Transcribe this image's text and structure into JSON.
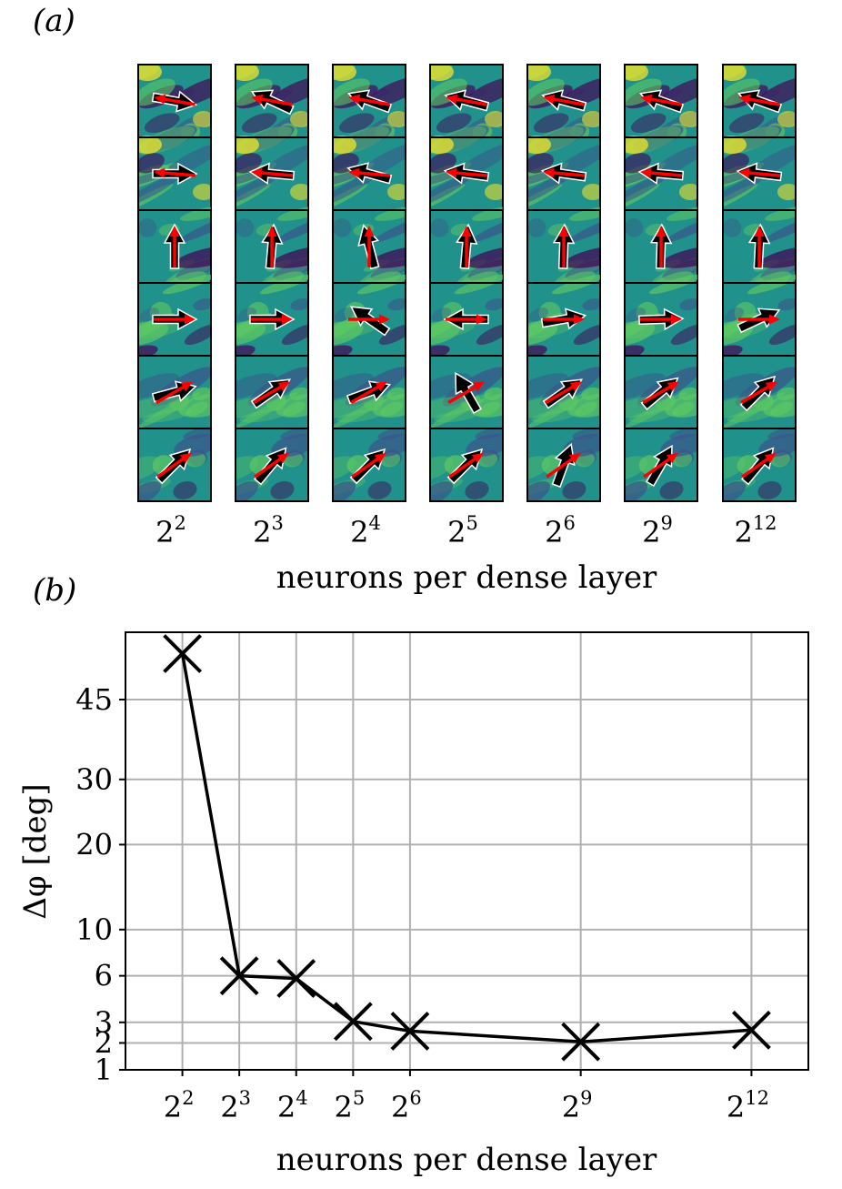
{
  "figure": {
    "panel_a_label": "(a)",
    "panel_b_label": "(b)"
  },
  "panel_a": {
    "columns": [
      {
        "base": "2",
        "exp": "2"
      },
      {
        "base": "2",
        "exp": "3"
      },
      {
        "base": "2",
        "exp": "4"
      },
      {
        "base": "2",
        "exp": "5"
      },
      {
        "base": "2",
        "exp": "6"
      },
      {
        "base": "2",
        "exp": "9"
      },
      {
        "base": "2",
        "exp": "12"
      }
    ],
    "xlabel": "neurons per dense layer",
    "rows": 6,
    "colormap": [
      "#440154",
      "#3b528b",
      "#21918c",
      "#5ec962",
      "#fde725"
    ],
    "arrow_colors": {
      "prediction": "#000000",
      "prediction_outline": "#ffffff",
      "truth": "#ff0000"
    },
    "truth_angles_deg": [
      170,
      175,
      90,
      0,
      30,
      35
    ],
    "predicted_angles_deg": [
      [
        -10,
        155,
        160,
        165,
        165,
        160,
        160
      ],
      [
        0,
        175,
        165,
        172,
        172,
        175,
        173
      ],
      [
        90,
        85,
        105,
        85,
        88,
        88,
        87
      ],
      [
        0,
        0,
        145,
        180,
        10,
        2,
        25
      ],
      [
        15,
        35,
        20,
        120,
        35,
        40,
        45
      ],
      [
        45,
        50,
        45,
        45,
        70,
        60,
        50
      ]
    ]
  },
  "chart_data": {
    "type": "line",
    "title": "",
    "xlabel": "neurons per dense layer",
    "ylabel": "Δφ [deg]",
    "x_exponents": [
      2,
      3,
      4,
      5,
      6,
      9,
      12
    ],
    "x_tick_labels": [
      {
        "base": "2",
        "exp": "2"
      },
      {
        "base": "2",
        "exp": "3"
      },
      {
        "base": "2",
        "exp": "4"
      },
      {
        "base": "2",
        "exp": "5"
      },
      {
        "base": "2",
        "exp": "6"
      },
      {
        "base": "2",
        "exp": "9"
      },
      {
        "base": "2",
        "exp": "12"
      }
    ],
    "xlim_exponent": [
      1,
      13
    ],
    "y_scale": "sqrt",
    "ylim": [
      1,
      60
    ],
    "y_ticks": [
      1,
      2,
      3,
      6,
      10,
      20,
      30,
      45
    ],
    "y_tick_labels": [
      "1",
      "2",
      "3",
      "6",
      "10",
      "20",
      "30",
      "45"
    ],
    "grid": true,
    "marker": "x",
    "line_color": "#000000",
    "values": [
      55,
      6.0,
      5.8,
      3.05,
      2.55,
      2.05,
      2.6
    ]
  }
}
